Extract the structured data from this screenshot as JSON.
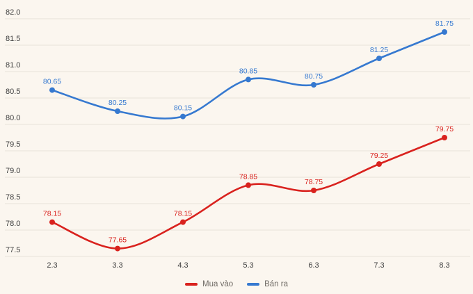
{
  "chart_data": {
    "type": "line",
    "title": "",
    "xlabel": "",
    "ylabel": "",
    "x": [
      "2.3",
      "3.3",
      "4.3",
      "5.3",
      "6.3",
      "7.3",
      "8.3"
    ],
    "series": [
      {
        "name": "Mua vào",
        "color": "#d9221e",
        "values": [
          78.15,
          77.65,
          78.15,
          78.85,
          78.75,
          79.25,
          79.75
        ],
        "point_labels": [
          "78.15",
          "77.65",
          "78.15",
          "78.85",
          "78.75",
          "79.25",
          "79.75"
        ]
      },
      {
        "name": "Bán ra",
        "color": "#3679d0",
        "values": [
          80.65,
          80.25,
          80.15,
          80.85,
          80.75,
          81.25,
          81.75
        ],
        "point_labels": [
          "80.65",
          "80.25",
          "80.15",
          "80.85",
          "80.75",
          "81.25",
          "81.75"
        ]
      }
    ],
    "ylim": [
      77.5,
      82.0
    ],
    "ytick_step": 0.5,
    "yticks": [
      "77.5",
      "78.0",
      "78.5",
      "79.0",
      "79.5",
      "80.0",
      "80.5",
      "81.0",
      "81.5",
      "82.0"
    ],
    "grid": true,
    "legend_position": "bottom-center",
    "line_style": "spline",
    "colors": {
      "background": "#fbf6ef",
      "gridline": "#e7e2da",
      "tick_text": "#404040",
      "legend_text": "#6f6a64"
    }
  }
}
